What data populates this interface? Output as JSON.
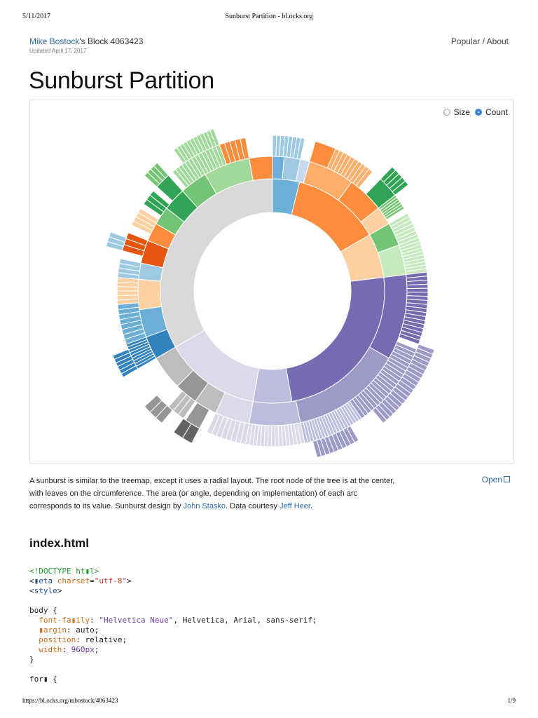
{
  "print": {
    "date": "5/11/2017",
    "title": "Sunburst Partition - bl.ocks.org",
    "url": "https://bl.ocks.org/mbostock/4063423",
    "page": "1/9"
  },
  "header": {
    "author": "Mike Bostock",
    "block_suffix": "'s Block ",
    "block_id": "4063423",
    "updated": "Updated April 17, 2017",
    "nav": {
      "popular": "Popular",
      "separator": " / ",
      "about": "About"
    }
  },
  "title": "Sunburst Partition",
  "form": {
    "size_label": "Size",
    "count_label": "Count",
    "selected": "count"
  },
  "colors": {
    "link": "#2e6ca4",
    "palette": [
      "#3182bd",
      "#6baed6",
      "#9ecae1",
      "#c6dbef",
      "#e6550d",
      "#fd8d3c",
      "#fdae6b",
      "#fdd0a2",
      "#31a354",
      "#74c476",
      "#a1d99b",
      "#c7e9c0",
      "#756bb1",
      "#9e9ac8",
      "#bcbddc",
      "#dadaeb",
      "#636363",
      "#969696",
      "#bdbdbd",
      "#d9d9d9"
    ]
  },
  "description": {
    "text1": "A sunburst is similar to the treemap, except it uses a radial layout. The root node of the tree is at the center, with leaves on the circumference. The area (or angle, depending on implementation) of each arc corresponds to its value. Sunburst design by ",
    "link1": "John Stasko",
    "text2": ". Data courtesy ",
    "link2": "Jeff Heer",
    "text3": "."
  },
  "open_label": "Open",
  "file_title": "index.html",
  "code_lines": [
    "<!DOCTYPE ht▮l>",
    "<▮eta charset=\"utf-8\">",
    "<style>",
    "",
    "body {",
    "  font-fa▮ily: \"Helvetica Neue\", Helvetica, Arial, sans-serif;",
    "  ▮argin: auto;",
    "  position: relative;",
    "  width: 960px;",
    "}",
    "",
    "for▮ {"
  ]
}
